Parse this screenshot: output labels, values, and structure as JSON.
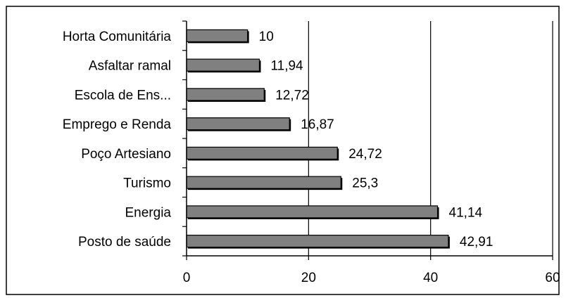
{
  "chart_data": {
    "type": "bar",
    "orientation": "horizontal",
    "categories": [
      "Horta Comunitária",
      "Asfaltar ramal",
      "Escola de Ens...",
      "Emprego e Renda",
      "Poço Artesiano",
      "Turismo",
      "Energia",
      "Posto de saúde"
    ],
    "values": [
      10,
      11.94,
      12.72,
      16.87,
      24.72,
      25.3,
      41.14,
      42.91
    ],
    "value_labels": [
      "10",
      "11,94",
      "12,72",
      "16,87",
      "24,72",
      "25,3",
      "41,14",
      "42,91"
    ],
    "x_ticks": [
      "0",
      "20",
      "40",
      "60"
    ],
    "xlim": [
      0,
      60
    ],
    "title": "",
    "xlabel": "",
    "ylabel": "",
    "grid": "vertical",
    "legend": "none",
    "bar_color": "#808080"
  }
}
